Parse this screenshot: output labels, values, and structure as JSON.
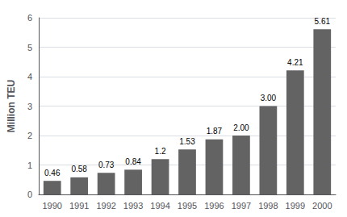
{
  "chart_data": {
    "type": "bar",
    "categories": [
      "1990",
      "1991",
      "1992",
      "1993",
      "1994",
      "1995",
      "1996",
      "1997",
      "1998",
      "1999",
      "2000"
    ],
    "values": [
      0.46,
      0.58,
      0.73,
      0.84,
      1.2,
      1.53,
      1.87,
      2.0,
      3.0,
      4.21,
      5.61
    ],
    "value_labels": [
      "0.46",
      "0.58",
      "0.73",
      "0.84",
      "1.2",
      "1.53",
      "1.87",
      "2.00",
      "3.00",
      "4.21",
      "5.61"
    ],
    "color": "#636363",
    "ylabel": "Million TEU",
    "ylim": [
      0,
      6
    ],
    "yticks": [
      0,
      1,
      2,
      3,
      4,
      5,
      6
    ],
    "grid": true,
    "data_labels": true
  }
}
